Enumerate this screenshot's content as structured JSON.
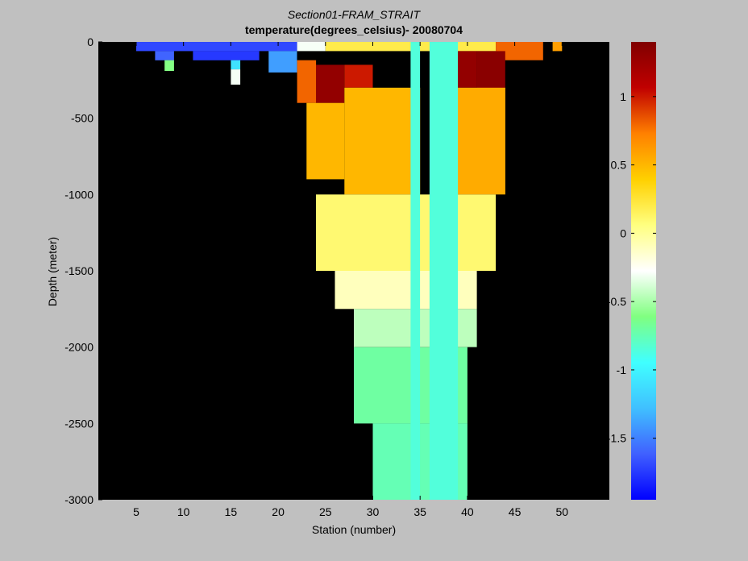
{
  "title": "Section01-FRAM_STRAIT",
  "subtitle": "temperature(degrees_celsius)- 20080704",
  "colors": {
    "background": "#c0c0c0",
    "plot_background": "#000000",
    "colormap": [
      "#0000ff",
      "#4060ff",
      "#40c0ff",
      "#40ffff",
      "#80ff80",
      "#ffffff",
      "#ffff80",
      "#ffd000",
      "#ff8000",
      "#c00000",
      "#800000"
    ]
  },
  "chart_data": {
    "type": "heatmap",
    "title": "Section01-FRAM_STRAIT",
    "subtitle": "temperature(degrees_celsius)- 20080704",
    "xlabel": "Station (number)",
    "ylabel": "Depth (meter)",
    "xlim": [
      1,
      55
    ],
    "ylim": [
      -3000,
      0
    ],
    "xticks": [
      5,
      10,
      15,
      20,
      25,
      30,
      35,
      40,
      45,
      50
    ],
    "yticks": [
      0,
      -500,
      -1000,
      -1500,
      -2000,
      -2500,
      -3000
    ],
    "clim": [
      -1.95,
      1.4
    ],
    "colorbar_ticks": [
      1,
      0.5,
      0,
      -0.5,
      -1,
      -1.5
    ],
    "grid": false,
    "no_data_color": "#000000",
    "regions": [
      {
        "x": [
          5,
          22
        ],
        "depth": [
          0,
          60
        ],
        "value": -1.7
      },
      {
        "x": [
          7,
          9
        ],
        "depth": [
          60,
          120
        ],
        "value": -1.6
      },
      {
        "x": [
          8,
          9
        ],
        "depth": [
          120,
          190
        ],
        "value": -0.6
      },
      {
        "x": [
          11,
          18
        ],
        "depth": [
          60,
          120
        ],
        "value": -1.75
      },
      {
        "x": [
          15,
          16
        ],
        "depth": [
          120,
          180
        ],
        "value": -1.1
      },
      {
        "x": [
          15,
          16
        ],
        "depth": [
          180,
          280
        ],
        "value": -0.3
      },
      {
        "x": [
          19,
          22
        ],
        "depth": [
          60,
          200
        ],
        "value": -1.4
      },
      {
        "x": [
          22,
          25
        ],
        "depth": [
          0,
          60
        ],
        "value": -0.3
      },
      {
        "x": [
          25,
          43
        ],
        "depth": [
          0,
          60
        ],
        "value": 0.2
      },
      {
        "x": [
          43,
          48
        ],
        "depth": [
          0,
          120
        ],
        "value": 0.8
      },
      {
        "x": [
          49,
          50
        ],
        "depth": [
          0,
          60
        ],
        "value": 0.6
      },
      {
        "x": [
          22,
          24
        ],
        "depth": [
          120,
          400
        ],
        "value": 0.8
      },
      {
        "x": [
          24,
          27
        ],
        "depth": [
          150,
          400
        ],
        "value": 1.3
      },
      {
        "x": [
          27,
          30
        ],
        "depth": [
          150,
          300
        ],
        "value": 1.0
      },
      {
        "x": [
          38,
          41
        ],
        "depth": [
          60,
          300
        ],
        "value": 1.3
      },
      {
        "x": [
          41,
          44
        ],
        "depth": [
          60,
          500
        ],
        "value": 1.35
      },
      {
        "x": [
          23,
          27
        ],
        "depth": [
          400,
          900
        ],
        "value": 0.5
      },
      {
        "x": [
          27,
          35
        ],
        "depth": [
          300,
          1000
        ],
        "value": 0.5
      },
      {
        "x": [
          37,
          44
        ],
        "depth": [
          300,
          1000
        ],
        "value": 0.55
      },
      {
        "x": [
          24,
          43
        ],
        "depth": [
          1000,
          1500
        ],
        "value": 0.1
      },
      {
        "x": [
          26,
          41
        ],
        "depth": [
          1500,
          1750
        ],
        "value": -0.1
      },
      {
        "x": [
          28,
          41
        ],
        "depth": [
          1750,
          2000
        ],
        "value": -0.45
      },
      {
        "x": [
          28,
          40
        ],
        "depth": [
          2000,
          2500
        ],
        "value": -0.7
      },
      {
        "x": [
          30,
          40
        ],
        "depth": [
          2500,
          3000
        ],
        "value": -0.75
      },
      {
        "x": [
          34,
          35
        ],
        "depth": [
          0,
          3000
        ],
        "value": -0.85
      },
      {
        "x": [
          36,
          39
        ],
        "depth": [
          0,
          3000
        ],
        "value": -0.85
      }
    ]
  },
  "axes": {
    "xlabel": "Station (number)",
    "ylabel": "Depth (meter)",
    "xtick_labels": [
      "5",
      "10",
      "15",
      "20",
      "25",
      "30",
      "35",
      "40",
      "45",
      "50"
    ],
    "ytick_labels": [
      "0",
      "-500",
      "-1000",
      "-1500",
      "-2000",
      "-2500",
      "-3000"
    ],
    "colorbar_labels": [
      "1",
      "0.5",
      "0",
      "-0.5",
      "-1",
      "-1.5"
    ]
  }
}
